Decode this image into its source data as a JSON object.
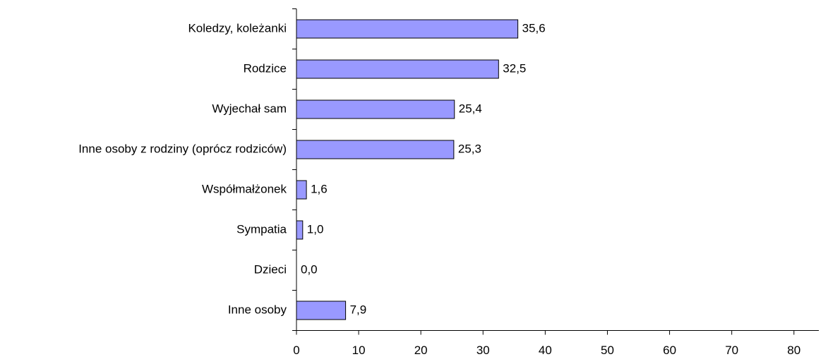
{
  "chart_data": {
    "type": "barh",
    "categories": [
      "Koledzy, koleżanki",
      "Rodzice",
      "Wyjechał sam",
      "Inne osoby z rodziny (oprócz rodziców)",
      "Współmałżonek",
      "Sympatia",
      "Dzieci",
      "Inne osoby"
    ],
    "values": [
      35.6,
      32.5,
      25.4,
      25.3,
      1.6,
      1.0,
      0.0,
      7.9
    ],
    "value_labels": [
      "35,6",
      "32,5",
      "25,4",
      "25,3",
      "1,6",
      "1,0",
      "0,0",
      "7,9"
    ],
    "color": "#9999ff",
    "xlim": [
      0,
      84
    ],
    "xticks": [
      0,
      10,
      20,
      30,
      40,
      50,
      60,
      70,
      80
    ],
    "grid": false
  }
}
